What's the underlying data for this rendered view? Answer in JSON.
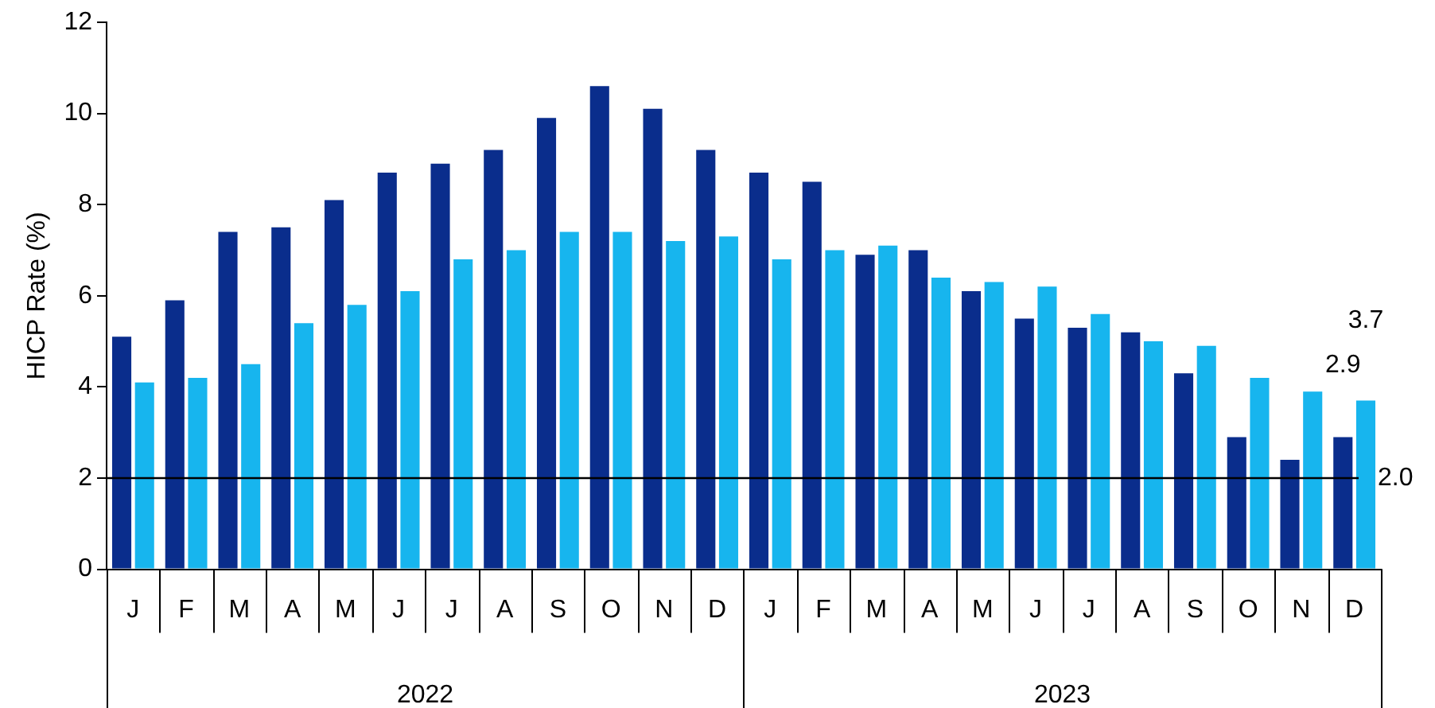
{
  "chart_data": {
    "type": "bar",
    "ylabel": "HICP Rate (%)",
    "categories": [
      "J",
      "F",
      "M",
      "A",
      "M",
      "J",
      "J",
      "A",
      "S",
      "O",
      "N",
      "D",
      "J",
      "F",
      "M",
      "A",
      "M",
      "J",
      "J",
      "A",
      "S",
      "O",
      "N",
      "D"
    ],
    "series": [
      {
        "color": "#0a2d8c",
        "values": [
          5.1,
          5.9,
          7.4,
          7.5,
          8.1,
          8.7,
          8.9,
          9.2,
          9.9,
          10.6,
          10.1,
          9.2,
          8.7,
          8.5,
          6.9,
          7.0,
          6.1,
          5.5,
          5.3,
          5.2,
          4.3,
          2.9,
          2.4,
          2.9
        ],
        "value_labels": [
          null,
          null,
          null,
          null,
          null,
          null,
          null,
          null,
          null,
          null,
          null,
          null,
          null,
          null,
          null,
          null,
          null,
          null,
          null,
          null,
          null,
          null,
          null,
          "2.9"
        ]
      },
      {
        "color": "#17b5ee",
        "values": [
          4.1,
          4.2,
          4.5,
          5.4,
          5.8,
          6.1,
          6.8,
          7.0,
          7.4,
          7.4,
          7.2,
          7.3,
          6.8,
          7.0,
          7.1,
          6.4,
          6.3,
          6.2,
          5.6,
          5.0,
          4.9,
          4.2,
          3.9,
          3.7
        ],
        "value_labels": [
          null,
          null,
          null,
          null,
          null,
          null,
          null,
          null,
          null,
          null,
          null,
          null,
          null,
          null,
          null,
          null,
          null,
          null,
          null,
          null,
          null,
          null,
          null,
          "3.7"
        ]
      }
    ],
    "ylim": [
      0,
      12
    ],
    "yticks": [
      0,
      2,
      4,
      6,
      8,
      10,
      12
    ],
    "ref_lines": [
      {
        "axis": "y",
        "value": 2,
        "label": "2.0",
        "color": "#000000"
      }
    ],
    "annotations": [
      "2022",
      "2023"
    ],
    "grid": false,
    "legend": false
  }
}
